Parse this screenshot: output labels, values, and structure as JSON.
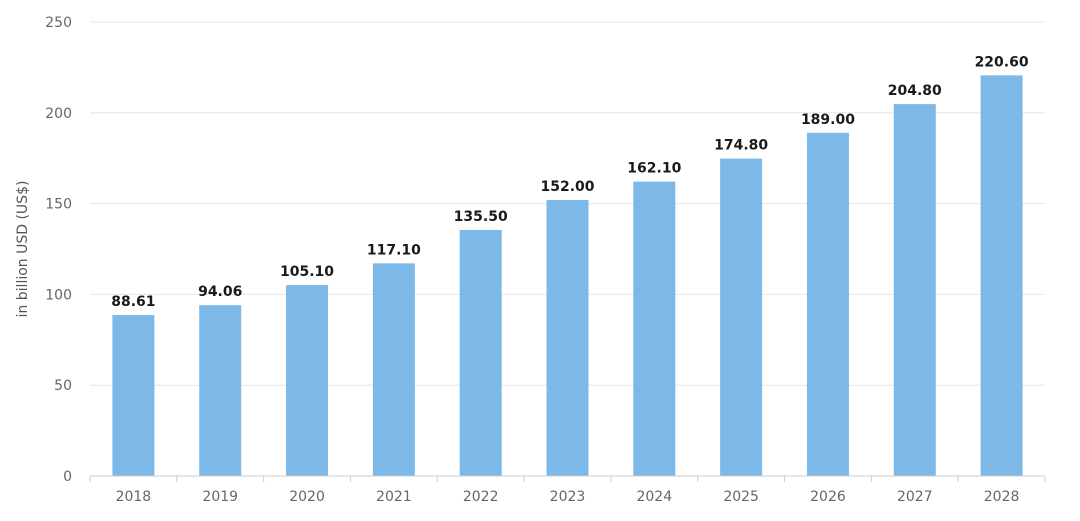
{
  "chart_data": {
    "type": "bar",
    "categories": [
      "2018",
      "2019",
      "2020",
      "2021",
      "2022",
      "2023",
      "2024",
      "2025",
      "2026",
      "2027",
      "2028"
    ],
    "values": [
      88.61,
      94.06,
      105.1,
      117.1,
      135.5,
      152.0,
      162.1,
      174.8,
      189.0,
      204.8,
      220.6
    ],
    "value_labels": [
      "88.61",
      "94.06",
      "105.10",
      "117.10",
      "135.50",
      "152.00",
      "162.10",
      "174.80",
      "189.00",
      "204.80",
      "220.60"
    ],
    "title": "",
    "xlabel": "",
    "ylabel": "in billion USD (US$)",
    "ylim": [
      0,
      250
    ],
    "yticks": [
      "0",
      "50",
      "100",
      "150",
      "200",
      "250"
    ],
    "grid": true,
    "legend": "none",
    "colors": {
      "bar": "#7db9e8",
      "grid": "#e6e6e6",
      "axis": "#cccccc"
    }
  }
}
